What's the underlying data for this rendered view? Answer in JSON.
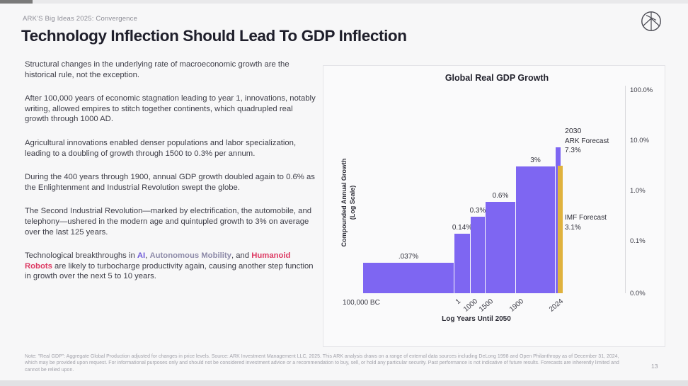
{
  "slide": {
    "eyebrow": "ARK'S Big Ideas 2025: Convergence",
    "title": "Technology Inflection Should Lead To GDP Inflection",
    "page_number": "13",
    "logo_icon": "ark-circular-monogram"
  },
  "body": {
    "paragraphs": [
      "Structural changes in the underlying rate of macroeconomic growth are the historical rule, not the exception.",
      "After 100,000 years of economic stagnation leading to year 1, innovations, notably writing, allowed empires to stitch together continents, which quadrupled real growth through 1000 AD.",
      "Agricultural innovations enabled denser populations and labor specialization, leading to a doubling of growth through 1500 to 0.3% per annum.",
      "During the 400 years through 1900, annual GDP growth doubled again to 0.6% as the Enlightenment and Industrial Revolution swept the globe.",
      "The Second Industrial Revolution—marked by electrification, the automobile, and telephony—ushered in the modern age and quintupled growth to 3% on average over the last 125 years."
    ],
    "highlight_paragraph": {
      "prefix": "Technological breakthroughs in ",
      "ai": "AI",
      "sep1": ", ",
      "autonomous": "Autonomous Mobility",
      "sep2": ", and ",
      "humanoid": "Humanoid Robots",
      "suffix": " are likely to turbocharge productivity again, causing another step function in growth over the next 5 to 10 years."
    }
  },
  "chart_data": {
    "type": "bar",
    "title": "Global Real GDP Growth",
    "ylabel": "Compounded Annual Growth (Log Scale)",
    "ylabel_lines": [
      "Compounded Annual Growth",
      "(Log Scale)"
    ],
    "xlabel": "Log Years Until 2050",
    "y_scale": "log",
    "y_ticks": [
      {
        "label": "100.0%",
        "value": 100
      },
      {
        "label": "10.0%",
        "value": 10
      },
      {
        "label": "1.0%",
        "value": 1
      },
      {
        "label": "0.1%",
        "value": 0.1
      },
      {
        "label": "0.0%",
        "value": 0
      }
    ],
    "x_tick_labels": [
      "100,000 BC",
      "1",
      "1000",
      "1500",
      "1900",
      "2024"
    ],
    "bars": [
      {
        "period": "100,000 BC to 1",
        "value_pct": 0.037,
        "label": ".037%"
      },
      {
        "period": "1 to 1000",
        "value_pct": 0.14,
        "label": "0.14%"
      },
      {
        "period": "1000 to 1500",
        "value_pct": 0.3,
        "label": "0.3%"
      },
      {
        "period": "1500 to 1900",
        "value_pct": 0.6,
        "label": "0.6%"
      },
      {
        "period": "1900 to 2024",
        "value_pct": 3,
        "label": "3%"
      }
    ],
    "forecasts": [
      {
        "year": "2030",
        "name": "ARK Forecast",
        "value_pct": 7.3,
        "label": "7.3%"
      },
      {
        "name": "IMF Forecast",
        "value_pct": 3.1,
        "label": "3.1%"
      }
    ]
  },
  "footnote": "Note: \"Real GDP\": Aggregate Global Production adjusted for changes in price levels. Source: ARK Investment Management LLC, 2025. This ARK analysis draws on a range of external data sources including DeLong 1998 and Open Philanthropy as of December 31, 2024, which may be provided upon request. For informational purposes only and should not be considered investment advice or a recommendation to buy, sell, or hold any particular security. Past performance is not indicative of future results. Forecasts are inherently limited and cannot be relied upon.",
  "colors": {
    "bar_purple": "#7e66f2",
    "forecast_gold": "#e0b23d",
    "ai_accent": "#6d59d8",
    "autonomous_accent": "#8d8aa8",
    "humanoid_accent": "#dd3a63"
  }
}
